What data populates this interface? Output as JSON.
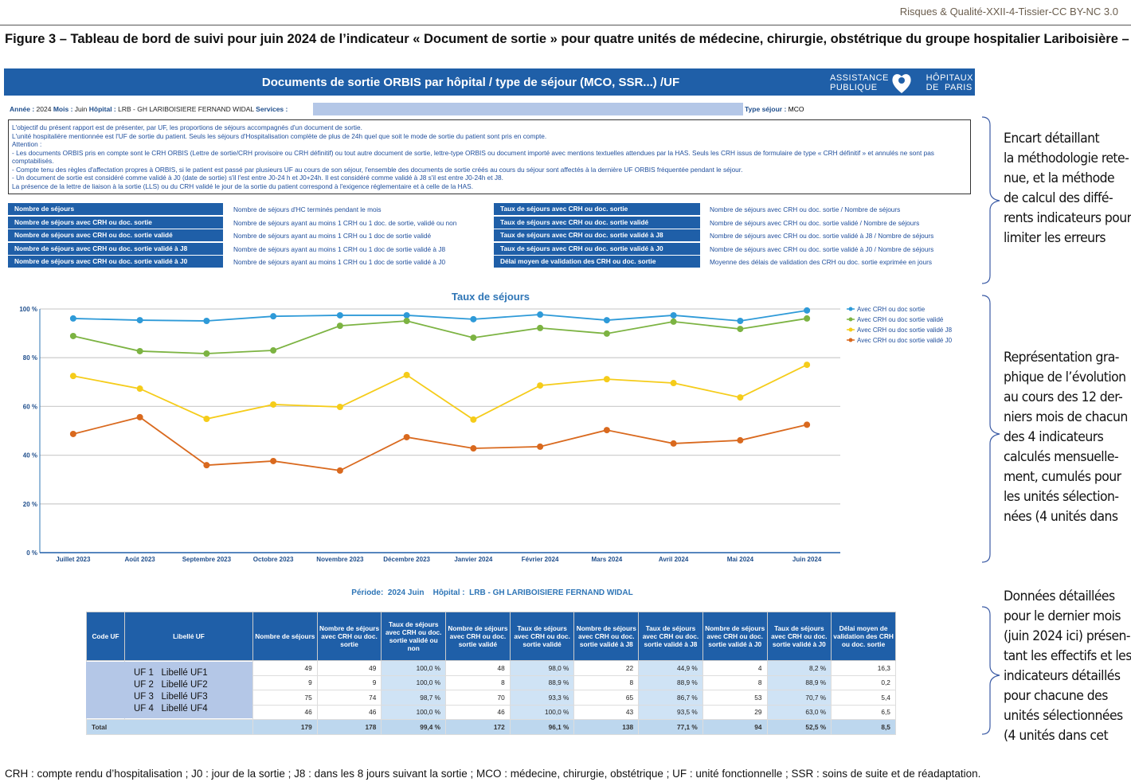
{
  "journal_ref": "Risques & Qualité-XXII-4-Tissier-CC BY-NC 3.0",
  "figure_title": "Figure 3 – Tableau de bord de suivi pour juin 2024 de l’indicateur « Document de sortie » pour quatre unités de médecine, chirurgie, obstétrique du groupe hospitalier Lariboisière –",
  "dashboard": {
    "title": "Documents de sortie ORBIS par hôpital / type de séjour (MCO, SSR...) /UF",
    "logo": {
      "left": "ASSISTANCE PUBLIQUE",
      "right": "HÔPITAUX DE PARIS"
    },
    "brand_color": "#1f5fa8",
    "info": {
      "annee_label": "Année :",
      "annee": "2024",
      "mois_label": "Mois :",
      "mois": "Juin",
      "hopital_label": "Hôpital :",
      "hopital": "LRB - GH LARIBOISIERE FERNAND WIDAL",
      "services_label": "Services :",
      "type_label": "Type séjour :",
      "type": "MCO"
    },
    "methodology": [
      "L'objectif du présent rapport est de présenter, par UF, les proportions de séjours accompagnés d'un document de sortie.",
      "L'unité hospitalière mentionnée est l'UF de sortie du patient. Seuls les séjours d'Hospitalisation complète de plus de 24h quel que soit le mode de sortie du patient sont pris en compte.",
      "Attention :",
      "- Les documents ORBIS pris en compte sont le CRH ORBIS (Lettre de sortie/CRH provisoire ou CRH définitif) ou tout autre document de sortie, lettre-type ORBIS ou document importé avec mentions textuelles attendues par la HAS. Seuls les CRH issus de formulaire de type « CRH définitif » et annulés ne sont pas comptabilisés.",
      "- Compte tenu des règles d'affectation propres à ORBIS, si le patient est passé par plusieurs UF au cours de son séjour, l'ensemble des documents de sortie créés au cours du séjour sont affectés à la dernière UF ORBIS fréquentée pendant le séjour.",
      "- Un document de sortie est considéré comme  validé à J0 (date de sortie) s'il l'est entre J0-24 h et J0+24h. Il est considéré comme validé à J8 s'il est entre J0-24h et J8.",
      "La présence de la lettre de liaison à la sortie (LLS) ou du CRH validé le jour de la sortie du patient correspond à l'exigence réglementaire et à celle de la HAS."
    ],
    "definitions_left": [
      {
        "label": "Nombre de séjours",
        "def": "Nombre de séjours d'HC terminés pendant le mois"
      },
      {
        "label": "Nombre de séjours avec CRH ou doc. sortie",
        "def": "Nombre de séjours ayant au moins 1 CRH ou 1 doc. de sortie, validé ou non"
      },
      {
        "label": "Nombre de séjours avec CRH ou doc. sortie validé",
        "def": "Nombre de séjours ayant au moins 1 CRH ou 1 doc de sortie validé"
      },
      {
        "label": "Nombre de séjours avec CRH ou doc. sortie validé à J8",
        "def": "Nombre de séjours ayant au moins 1 CRH ou 1 doc de sortie validé à J8"
      },
      {
        "label": "Nombre de séjours avec CRH ou doc. sortie validé à J0",
        "def": "Nombre de séjours ayant au moins 1 CRH ou 1 doc de sortie validé à J0"
      }
    ],
    "definitions_right": [
      {
        "label": "Taux de séjours avec CRH ou doc. sortie",
        "def": "Nombre de séjours avec CRH ou doc. sortie / Nombre de séjours"
      },
      {
        "label": "Taux de séjours avec CRH ou doc. sortie validé",
        "def": "Nombre de séjours avec CRH ou doc. sortie validé / Nombre de séjours"
      },
      {
        "label": "Taux de séjours avec CRH ou doc. sortie validé à J8",
        "def": "Nombre de séjours avec CRH ou doc. sortie validé à J8 / Nombre de séjours"
      },
      {
        "label": "Taux de séjours avec CRH ou doc. sortie validé à J0",
        "def": "Nombre de séjours avec CRH ou doc. sortie validé à J0 / Nombre de séjours"
      },
      {
        "label": "Délai moyen de validation des CRH ou doc. sortie",
        "def": "Moyenne des délais de validation des CRH ou doc. sortie exprimée en jours"
      }
    ],
    "period_line": {
      "periode_label": "Période:",
      "periode": "2024 Juin",
      "hopital_label": "Hôpital :",
      "hopital": "LRB - GH LARIBOISIERE FERNAND WIDAL"
    },
    "table": {
      "headers": [
        "Code UF",
        "Libellé UF",
        "Nombre de séjours",
        "Nombre de séjours avec CRH ou doc. sortie",
        "Taux de séjours avec CRH ou doc. sortie validé ou non",
        "Nombre de séjours avec CRH ou doc. sortie validé",
        "Taux de séjours avec CRH ou doc. sortie validé",
        "Nombre de séjours avec CRH ou doc. sortie validé à J8",
        "Taux de séjours avec CRH ou doc. sortie validé à J8",
        "Nombre de séjours avec CRH ou doc. sortie validé à J0",
        "Taux de séjours avec CRH ou doc. sortie validé à J0",
        "Délai moyen de validation des CRH ou doc. sortie"
      ],
      "uf_labels": [
        "UF 1   Libellé UF1",
        "UF 2   Libellé UF2",
        "UF 3   Libellé UF3",
        "UF 4   Libellé UF4"
      ],
      "rows": [
        [
          "49",
          "49",
          "100,0 %",
          "48",
          "98,0 %",
          "22",
          "44,9 %",
          "4",
          "8,2 %",
          "16,3"
        ],
        [
          "9",
          "9",
          "100,0 %",
          "8",
          "88,9 %",
          "8",
          "88,9 %",
          "8",
          "88,9 %",
          "0,2"
        ],
        [
          "75",
          "74",
          "98,7 %",
          "70",
          "93,3 %",
          "65",
          "86,7 %",
          "53",
          "70,7 %",
          "5,4"
        ],
        [
          "46",
          "46",
          "100,0 %",
          "46",
          "100,0 %",
          "43",
          "93,5 %",
          "29",
          "63,0 %",
          "6,5"
        ]
      ],
      "total_label": "Total",
      "total": [
        "179",
        "178",
        "99,4 %",
        "172",
        "96,1 %",
        "138",
        "77,1 %",
        "94",
        "52,5 %",
        "8,5"
      ]
    }
  },
  "chart_data": {
    "type": "line",
    "title": "Taux de séjours",
    "categories": [
      "Juillet 2023",
      "Août 2023",
      "Septembre 2023",
      "Octobre 2023",
      "Novembre 2023",
      "Décembre 2023",
      "Janvier 2024",
      "Février 2024",
      "Mars 2024",
      "Avril 2024",
      "Mai 2024",
      "Juin 2024"
    ],
    "ylim": [
      0,
      100
    ],
    "yticks": [
      "0 %",
      "20 %",
      "40 %",
      "60 %",
      "80 %",
      "100 %"
    ],
    "grid": true,
    "legend_position": "right",
    "series": [
      {
        "name": "Avec CRH ou doc sortie",
        "color": "#2e9ad8",
        "values": [
          96.1,
          95.4,
          95.1,
          97.0,
          97.4,
          97.4,
          95.8,
          97.7,
          95.4,
          97.4,
          95.1,
          99.4
        ]
      },
      {
        "name": "Avec CRH ou doc sortie validé",
        "color": "#7cb342",
        "values": [
          88.9,
          82.7,
          81.7,
          83.0,
          93.1,
          95.1,
          88.2,
          92.2,
          89.9,
          94.8,
          91.8,
          96.1
        ]
      },
      {
        "name": "Avec CRH ou doc sortie validé J8",
        "color": "#f5cc1a",
        "values": [
          72.5,
          67.3,
          54.9,
          60.8,
          59.8,
          72.9,
          54.6,
          68.6,
          71.2,
          69.6,
          63.7,
          77.1
        ]
      },
      {
        "name": "Avec CRH ou doc sortie validé J0",
        "color": "#d9691e",
        "values": [
          48.7,
          55.6,
          35.9,
          37.6,
          33.7,
          47.4,
          42.8,
          43.5,
          50.3,
          44.8,
          46.1,
          52.5
        ]
      }
    ]
  },
  "annotations": [
    [
      "Encart détaillant",
      "la méthodologie rete-",
      "nue, et la méthode",
      "de calcul des diffé-",
      "rents indicateurs pour",
      "limiter les erreurs"
    ],
    [
      "Représentation gra-",
      "phique de l’évolution",
      "au cours des 12 der-",
      "niers mois de chacun",
      "des 4 indicateurs",
      "calculés mensuelle-",
      "ment, cumulés pour",
      "les unités sélection-",
      "nées (4 unités dans"
    ],
    [
      "Données détaillées",
      "pour le dernier mois",
      "(juin 2024 ici) présen-",
      "tant les effectifs et les",
      "indicateurs détaillés",
      "pour chacune des",
      "unités sélectionnées",
      "(4 unités dans cet"
    ]
  ],
  "footer": "CRH : compte rendu d’hospitalisation ; J0 : jour de la sortie ; J8 : dans les 8 jours suivant la sortie ; MCO : médecine, chirurgie, obstétrique ; UF : unité fonctionnelle ; SSR : soins de suite et de réadaptation."
}
